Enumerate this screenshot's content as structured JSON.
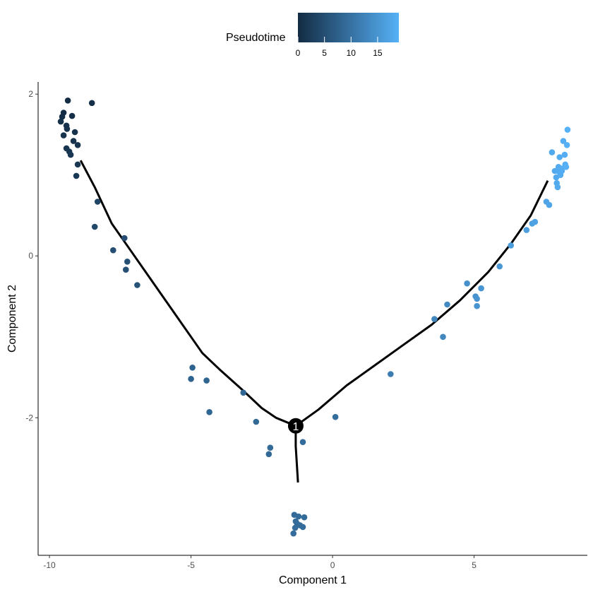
{
  "chart_data": {
    "type": "scatter",
    "xlabel": "Component 1",
    "ylabel": "Component 2",
    "xlim": [
      -10.4,
      9.0
    ],
    "ylim": [
      -3.7,
      2.15
    ],
    "x_ticks": [
      -10,
      -5,
      0,
      5
    ],
    "x_tick_labels": [
      "-10",
      "-5",
      "0",
      "5"
    ],
    "y_ticks": [
      2,
      0,
      -2
    ],
    "y_tick_labels": [
      "2",
      "0",
      "-2"
    ],
    "legend": {
      "title": "Pseudotime",
      "position": "top",
      "range": [
        0,
        19
      ],
      "ticks": [
        0,
        5,
        10,
        15
      ],
      "tick_labels": [
        "0",
        "5",
        "10",
        "15"
      ],
      "low_color": "#132B43",
      "high_color": "#56B1F7"
    },
    "trajectory": {
      "branch_left": [
        [
          -8.9,
          1.18
        ],
        [
          -8.4,
          0.85
        ],
        [
          -7.8,
          0.4
        ],
        [
          -7.0,
          0.0
        ],
        [
          -6.0,
          -0.5
        ],
        [
          -5.0,
          -1.0
        ],
        [
          -4.6,
          -1.2
        ],
        [
          -4.0,
          -1.4
        ],
        [
          -3.2,
          -1.65
        ],
        [
          -2.5,
          -1.88
        ],
        [
          -2.0,
          -2.0
        ],
        [
          -1.3,
          -2.1
        ]
      ],
      "branch_right": [
        [
          -1.3,
          -2.1
        ],
        [
          -0.5,
          -1.9
        ],
        [
          0.5,
          -1.6
        ],
        [
          1.5,
          -1.35
        ],
        [
          2.5,
          -1.1
        ],
        [
          3.5,
          -0.85
        ],
        [
          4.5,
          -0.55
        ],
        [
          5.5,
          -0.2
        ],
        [
          6.3,
          0.15
        ],
        [
          7.0,
          0.5
        ],
        [
          7.6,
          0.93
        ]
      ],
      "branch_down": [
        [
          -1.3,
          -2.1
        ],
        [
          -1.3,
          -2.35
        ],
        [
          -1.22,
          -2.8
        ]
      ]
    },
    "branch_node": {
      "x": -1.3,
      "y": -2.1,
      "label": "1",
      "color": "#000000"
    },
    "points": [
      {
        "x": -9.35,
        "y": 1.92,
        "t": 0.0
      },
      {
        "x": -8.5,
        "y": 1.89,
        "t": 0.5
      },
      {
        "x": -9.5,
        "y": 1.77,
        "t": 0.3
      },
      {
        "x": -9.55,
        "y": 1.72,
        "t": 0.4
      },
      {
        "x": -9.2,
        "y": 1.73,
        "t": 0.6
      },
      {
        "x": -9.6,
        "y": 1.66,
        "t": 0.7
      },
      {
        "x": -9.4,
        "y": 1.61,
        "t": 0.8
      },
      {
        "x": -9.38,
        "y": 1.57,
        "t": 0.9
      },
      {
        "x": -9.1,
        "y": 1.53,
        "t": 1.0
      },
      {
        "x": -9.5,
        "y": 1.49,
        "t": 1.1
      },
      {
        "x": -9.15,
        "y": 1.42,
        "t": 1.2
      },
      {
        "x": -9.0,
        "y": 1.37,
        "t": 1.3
      },
      {
        "x": -9.4,
        "y": 1.33,
        "t": 1.4
      },
      {
        "x": -9.3,
        "y": 1.29,
        "t": 1.5
      },
      {
        "x": -9.25,
        "y": 1.25,
        "t": 1.6
      },
      {
        "x": -9.0,
        "y": 1.13,
        "t": 1.7
      },
      {
        "x": -9.05,
        "y": 0.99,
        "t": 1.8
      },
      {
        "x": -8.3,
        "y": 0.67,
        "t": 3.5
      },
      {
        "x": -8.4,
        "y": 0.36,
        "t": 4.0
      },
      {
        "x": -7.35,
        "y": 0.22,
        "t": 5.0
      },
      {
        "x": -7.75,
        "y": 0.07,
        "t": 5.0
      },
      {
        "x": -7.25,
        "y": -0.07,
        "t": 5.2
      },
      {
        "x": -7.3,
        "y": -0.17,
        "t": 5.3
      },
      {
        "x": -6.9,
        "y": -0.36,
        "t": 5.5
      },
      {
        "x": -4.95,
        "y": -1.38,
        "t": 8.0
      },
      {
        "x": -5.0,
        "y": -1.52,
        "t": 8.0
      },
      {
        "x": -4.45,
        "y": -1.54,
        "t": 8.2
      },
      {
        "x": -3.15,
        "y": -1.69,
        "t": 8.5
      },
      {
        "x": -4.35,
        "y": -1.93,
        "t": 8.3
      },
      {
        "x": -2.7,
        "y": -2.05,
        "t": 8.6
      },
      {
        "x": -2.2,
        "y": -2.37,
        "t": 8.8
      },
      {
        "x": -2.25,
        "y": -2.45,
        "t": 8.8
      },
      {
        "x": -1.05,
        "y": -2.3,
        "t": 9.2
      },
      {
        "x": 0.1,
        "y": -1.99,
        "t": 9.5
      },
      {
        "x": -1.35,
        "y": -3.2,
        "t": 9.0
      },
      {
        "x": -1.2,
        "y": -3.22,
        "t": 9.1
      },
      {
        "x": -1.0,
        "y": -3.23,
        "t": 9.1
      },
      {
        "x": -1.3,
        "y": -3.28,
        "t": 9.2
      },
      {
        "x": -1.25,
        "y": -3.31,
        "t": 9.2
      },
      {
        "x": -1.15,
        "y": -3.33,
        "t": 9.3
      },
      {
        "x": -1.05,
        "y": -3.35,
        "t": 9.3
      },
      {
        "x": -1.32,
        "y": -3.36,
        "t": 9.3
      },
      {
        "x": -1.38,
        "y": -3.43,
        "t": 9.4
      },
      {
        "x": 2.05,
        "y": -1.46,
        "t": 11.5
      },
      {
        "x": 3.6,
        "y": -0.78,
        "t": 13.0
      },
      {
        "x": 3.9,
        "y": -1.0,
        "t": 13.2
      },
      {
        "x": 4.05,
        "y": -0.6,
        "t": 13.5
      },
      {
        "x": 4.75,
        "y": -0.34,
        "t": 14.5
      },
      {
        "x": 5.05,
        "y": -0.5,
        "t": 14.8
      },
      {
        "x": 5.1,
        "y": -0.53,
        "t": 14.9
      },
      {
        "x": 5.1,
        "y": -0.62,
        "t": 15.0
      },
      {
        "x": 5.25,
        "y": -0.4,
        "t": 15.0
      },
      {
        "x": 5.9,
        "y": -0.13,
        "t": 15.5
      },
      {
        "x": 6.3,
        "y": 0.13,
        "t": 16.0
      },
      {
        "x": 6.85,
        "y": 0.32,
        "t": 16.5
      },
      {
        "x": 7.05,
        "y": 0.4,
        "t": 16.7
      },
      {
        "x": 7.15,
        "y": 0.42,
        "t": 16.8
      },
      {
        "x": 7.55,
        "y": 0.67,
        "t": 17.2
      },
      {
        "x": 7.65,
        "y": 0.63,
        "t": 17.3
      },
      {
        "x": 7.75,
        "y": 1.28,
        "t": 17.8
      },
      {
        "x": 7.85,
        "y": 1.05,
        "t": 17.9
      },
      {
        "x": 7.9,
        "y": 0.97,
        "t": 18.0
      },
      {
        "x": 7.92,
        "y": 0.9,
        "t": 18.0
      },
      {
        "x": 7.95,
        "y": 0.85,
        "t": 18.1
      },
      {
        "x": 7.98,
        "y": 1.1,
        "t": 18.2
      },
      {
        "x": 8.0,
        "y": 1.04,
        "t": 18.2
      },
      {
        "x": 8.02,
        "y": 1.22,
        "t": 18.3
      },
      {
        "x": 8.05,
        "y": 1.0,
        "t": 18.3
      },
      {
        "x": 8.08,
        "y": 1.08,
        "t": 18.4
      },
      {
        "x": 8.1,
        "y": 1.05,
        "t": 18.5
      },
      {
        "x": 8.15,
        "y": 1.42,
        "t": 18.5
      },
      {
        "x": 8.2,
        "y": 1.25,
        "t": 18.6
      },
      {
        "x": 8.22,
        "y": 1.13,
        "t": 18.7
      },
      {
        "x": 8.25,
        "y": 1.1,
        "t": 18.8
      },
      {
        "x": 8.28,
        "y": 1.37,
        "t": 18.9
      },
      {
        "x": 8.3,
        "y": 1.56,
        "t": 19.0
      }
    ]
  }
}
